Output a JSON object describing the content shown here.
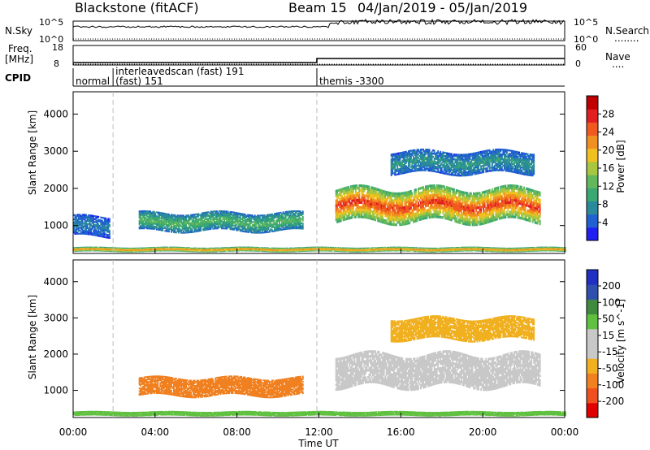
{
  "header": {
    "station": "Blackstone (fitACF)",
    "beam": "Beam 15",
    "date_range": "04/Jan/2019 - 05/Jan/2019"
  },
  "status_panels": {
    "left_labels": {
      "nsky": "N.Sky",
      "freq_line1": "Freq.",
      "freq_line2": "[MHz]",
      "cpid": "CPID"
    },
    "right_labels": {
      "nsearch": "N.Search",
      "nave": "Nave",
      "dots": "........",
      "dots2": "...."
    },
    "nsky_ticks": [
      "10^5",
      "10^0"
    ],
    "nsearch_ticks": [
      "10^5",
      "10^0"
    ],
    "freq_ticks": [
      "18",
      "8"
    ],
    "nave_ticks": [
      "60",
      "0"
    ],
    "cpid_segments": [
      {
        "start_hour": 0.0,
        "label": "normal"
      },
      {
        "start_hour": 1.95,
        "label": "interleavedscan (fast) 191",
        "label2": "(fast) 151"
      },
      {
        "start_hour": 11.9,
        "label": "themis -3300"
      }
    ]
  },
  "colors": {
    "power_scale": [
      "#2020f0",
      "#2060d0",
      "#2a8a9c",
      "#3aa873",
      "#63b85c",
      "#a8c640",
      "#f0c020",
      "#f09020",
      "#f05a20",
      "#e02020",
      "#c00000"
    ],
    "velocity_scale": [
      "#2030c0",
      "#3050b0",
      "#408a40",
      "#60c040",
      "#c8c8c8",
      "#c8c8c8",
      "#f0b020",
      "#f08020",
      "#f05020",
      "#e00000"
    ]
  },
  "chart_data": [
    {
      "type": "heatmap",
      "title": "",
      "quantity": "Power",
      "xlabel": "",
      "ylabel": "Slant Range [km]",
      "xlim": [
        0,
        24
      ],
      "ylim": [
        250,
        4600
      ],
      "yticks": [
        1000,
        2000,
        3000,
        4000
      ],
      "colorbar": {
        "label": "Power [dB]",
        "range": [
          0,
          32
        ],
        "ticks": [
          4,
          8,
          12,
          16,
          20,
          24,
          28
        ]
      },
      "features": [
        {
          "name": "ground scatter band",
          "hours": [
            0,
            24
          ],
          "range_km": [
            300,
            420
          ],
          "power_db": 24
        },
        {
          "name": "early scatter",
          "hours": [
            0,
            1.8
          ],
          "range_km": [
            700,
            1250
          ],
          "power_db": 6
        },
        {
          "name": "evening scatter",
          "hours": [
            3.2,
            11.2
          ],
          "range_km": [
            850,
            1350
          ],
          "power_db": 12
        },
        {
          "name": "main echo",
          "hours": [
            12.8,
            22.8
          ],
          "range_km": [
            1100,
            2000
          ],
          "power_db": 28
        },
        {
          "name": "upper echo",
          "hours": [
            15.5,
            22.5
          ],
          "range_km": [
            2400,
            3000
          ],
          "power_db": 8
        }
      ]
    },
    {
      "type": "heatmap",
      "title": "",
      "quantity": "Velocity",
      "xlabel": "Time UT",
      "ylabel": "Slant Range [km]",
      "xlim": [
        0,
        24
      ],
      "ylim": [
        250,
        4600
      ],
      "xticks": [
        "00:00",
        "04:00",
        "08:00",
        "12:00",
        "16:00",
        "20:00",
        "00:00"
      ],
      "yticks": [
        1000,
        2000,
        3000,
        4000
      ],
      "colorbar": {
        "label": "Velocity [m s^-1]",
        "range": [
          -250,
          250
        ],
        "ticks": [
          200,
          100,
          50,
          15,
          -15,
          -50,
          -100,
          -200
        ]
      },
      "features": [
        {
          "name": "ground scatter",
          "hours": [
            0,
            24
          ],
          "range_km": [
            300,
            420
          ],
          "velocity": 30
        },
        {
          "name": "evening flow",
          "hours": [
            3.2,
            11.2
          ],
          "range_km": [
            850,
            1350
          ],
          "velocity": -60
        },
        {
          "name": "main echo",
          "hours": [
            12.8,
            22.8
          ],
          "range_km": [
            1100,
            2000
          ],
          "velocity": 0
        },
        {
          "name": "upper echo",
          "hours": [
            15.5,
            22.5
          ],
          "range_km": [
            2400,
            3000
          ],
          "velocity": -40
        }
      ]
    }
  ]
}
